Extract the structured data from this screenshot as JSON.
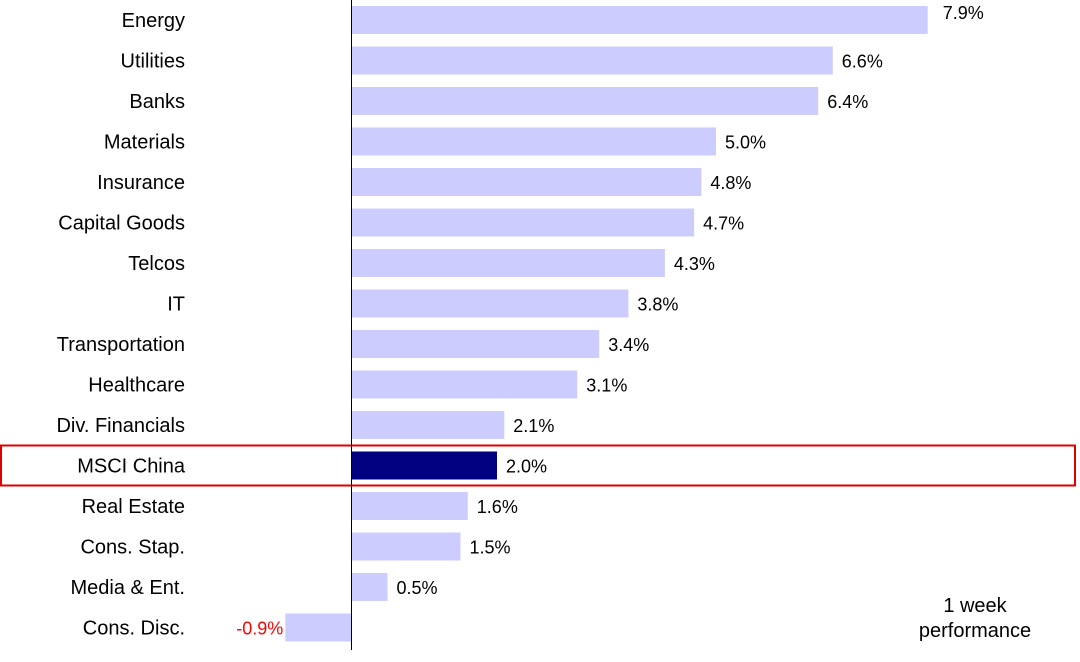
{
  "chart_data": {
    "type": "bar",
    "orientation": "horizontal",
    "categories": [
      "Energy",
      "Utilities",
      "Banks",
      "Materials",
      "Insurance",
      "Capital Goods",
      "Telcos",
      "IT",
      "Transportation",
      "Healthcare",
      "Div. Financials",
      "MSCI China",
      "Real Estate",
      "Cons. Stap.",
      "Media & Ent.",
      "Cons. Disc."
    ],
    "values": [
      7.9,
      6.6,
      6.4,
      5.0,
      4.8,
      4.7,
      4.3,
      3.8,
      3.4,
      3.1,
      2.1,
      2.0,
      1.6,
      1.5,
      0.5,
      -0.9
    ],
    "value_labels": [
      "7.9%",
      "6.6%",
      "6.4%",
      "5.0%",
      "4.8%",
      "4.7%",
      "4.3%",
      "3.8%",
      "3.4%",
      "3.1%",
      "2.1%",
      "2.0%",
      "1.6%",
      "1.5%",
      "0.5%",
      "-0.9%"
    ],
    "highlight_category": "MSCI China",
    "note": [
      "1 week",
      "performance"
    ],
    "xlim": [
      -1.0,
      8.0
    ],
    "grid": false,
    "colors": {
      "bar": "#ccccff",
      "highlight_bar": "#000080",
      "highlight_box": "#e00000",
      "negative_label": "#ff0000",
      "label": "#000000",
      "axis": "#000000"
    }
  }
}
